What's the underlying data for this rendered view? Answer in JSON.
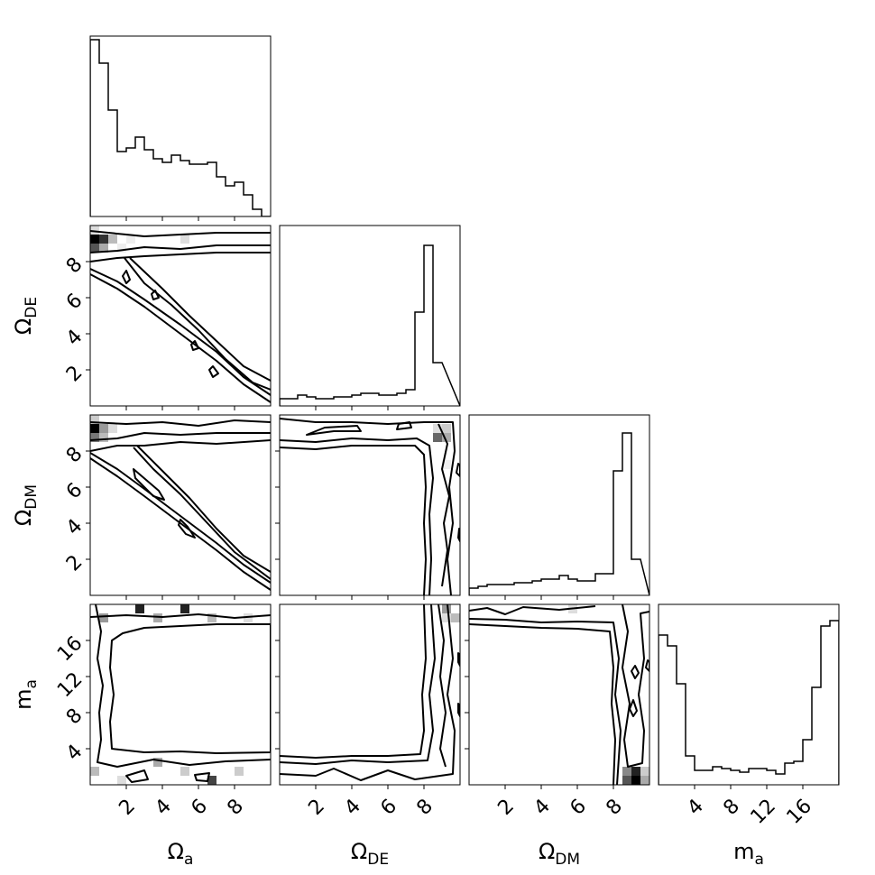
{
  "chart_data": {
    "type": "corner",
    "parameters": [
      {
        "base": "Ω",
        "sub": "a"
      },
      {
        "base": "Ω",
        "sub": "DE"
      },
      {
        "base": "Ω",
        "sub": "DM"
      },
      {
        "base": "m",
        "sub": "a"
      }
    ],
    "ranges": [
      [
        0,
        10
      ],
      [
        0,
        10
      ],
      [
        0,
        10
      ],
      [
        0,
        20
      ]
    ],
    "ticks": [
      [
        2,
        4,
        6,
        8
      ],
      [
        2,
        4,
        6,
        8
      ],
      [
        2,
        4,
        6,
        8
      ],
      [
        4,
        8,
        12,
        16
      ]
    ],
    "tick_labels": [
      [
        "2",
        "4",
        "6",
        "8"
      ],
      [
        "2",
        "4",
        "6",
        "8"
      ],
      [
        "2",
        "4",
        "6",
        "8"
      ],
      [
        "4",
        "8",
        "12",
        "16"
      ]
    ],
    "histograms": [
      {
        "param": "Ω_a",
        "bin_start": 0,
        "bin_width": 0.5,
        "counts": [
          0.98,
          0.85,
          0.59,
          0.36,
          0.38,
          0.44,
          0.37,
          0.32,
          0.3,
          0.34,
          0.31,
          0.29,
          0.29,
          0.3,
          0.22,
          0.17,
          0.19,
          0.12,
          0.04,
          0.0
        ]
      },
      {
        "param": "Ω_DE",
        "bin_start": 0,
        "bin_width": 0.5,
        "counts": [
          0.04,
          0.04,
          0.06,
          0.05,
          0.04,
          0.04,
          0.05,
          0.05,
          0.06,
          0.07,
          0.07,
          0.06,
          0.06,
          0.07,
          0.09,
          0.52,
          0.89,
          0.24
        ]
      },
      {
        "param": "Ω_DM",
        "bin_start": 0,
        "bin_width": 0.5,
        "counts": [
          0.04,
          0.05,
          0.06,
          0.06,
          0.06,
          0.07,
          0.07,
          0.08,
          0.09,
          0.09,
          0.11,
          0.09,
          0.08,
          0.08,
          0.12,
          0.12,
          0.69,
          0.9,
          0.2
        ]
      },
      {
        "param": "m_a",
        "bin_start": 0,
        "bin_width": 1,
        "counts": [
          0.83,
          0.77,
          0.56,
          0.16,
          0.08,
          0.08,
          0.1,
          0.09,
          0.08,
          0.07,
          0.09,
          0.09,
          0.08,
          0.06,
          0.12,
          0.13,
          0.25,
          0.54,
          0.88,
          0.91
        ]
      }
    ],
    "pairs": [
      {
        "x": "Ω_a",
        "y": "Ω_DE",
        "shape": "anti-diagonal band with ridge near Ω_DE≈9"
      },
      {
        "x": "Ω_a",
        "y": "Ω_DM",
        "shape": "anti-diagonal band with ridge near Ω_DM≈9"
      },
      {
        "x": "Ω_DE",
        "y": "Ω_DM",
        "shape": "L-shaped frame along Ω_DM≈9 and Ω_DE≈9"
      },
      {
        "x": "Ω_a",
        "y": "m_a",
        "shape": "rectangular frame"
      },
      {
        "x": "Ω_DE",
        "y": "m_a",
        "shape": "L-shaped frame along m_a≈1.5 and Ω_DE≈9"
      },
      {
        "x": "Ω_DM",
        "y": "m_a",
        "shape": "L-shaped frame along m_a≈18 and Ω_DM≈9"
      }
    ],
    "grid": false,
    "legend": "none"
  }
}
